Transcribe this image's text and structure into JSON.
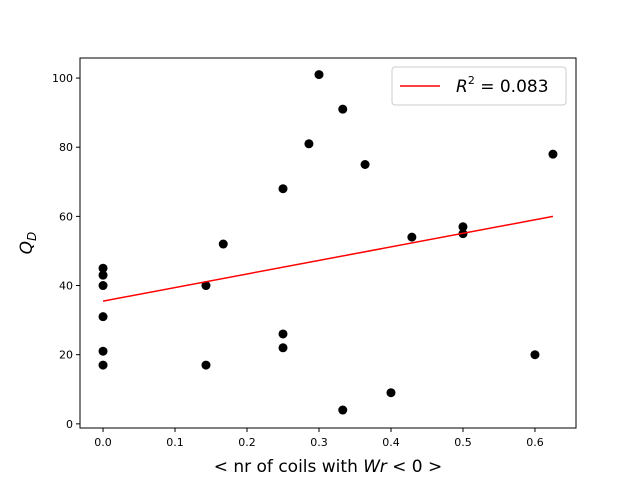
{
  "chart_data": {
    "type": "scatter",
    "title": "",
    "xlabel": "< nr of coils with Wr < 0 >",
    "xlabel_parts": {
      "pre": "< nr of coils with ",
      "var": "Wr",
      "post": " < 0 >"
    },
    "ylabel": "Q_D",
    "ylabel_parts": {
      "main": "Q",
      "sub": "D"
    },
    "xlim": [
      -0.032,
      0.657
    ],
    "ylim": [
      -1.2,
      105.8
    ],
    "xticks": [
      0.0,
      0.1,
      0.2,
      0.3,
      0.4,
      0.5,
      0.6
    ],
    "xtick_labels": [
      "0.0",
      "0.1",
      "0.2",
      "0.3",
      "0.4",
      "0.5",
      "0.6"
    ],
    "yticks": [
      0,
      20,
      40,
      60,
      80,
      100
    ],
    "ytick_labels": [
      "0",
      "20",
      "40",
      "60",
      "80",
      "100"
    ],
    "grid": false,
    "points": [
      [
        0,
        45
      ],
      [
        0,
        43
      ],
      [
        0,
        40
      ],
      [
        0,
        31
      ],
      [
        0,
        21
      ],
      [
        0,
        17
      ],
      [
        0.143,
        40
      ],
      [
        0.143,
        17
      ],
      [
        0.167,
        52
      ],
      [
        0.25,
        68
      ],
      [
        0.25,
        26
      ],
      [
        0.25,
        22
      ],
      [
        0.286,
        81
      ],
      [
        0.3,
        101
      ],
      [
        0.333,
        91
      ],
      [
        0.333,
        4
      ],
      [
        0.364,
        75
      ],
      [
        0.4,
        9
      ],
      [
        0.429,
        54
      ],
      [
        0.5,
        57
      ],
      [
        0.5,
        55
      ],
      [
        0.6,
        20
      ],
      [
        0.625,
        78
      ]
    ],
    "point_color": "#000000",
    "fit_line": {
      "x": [
        0,
        0.625
      ],
      "y": [
        35.5,
        60
      ],
      "color": "#ff0000"
    },
    "legend": {
      "placement": "top-right",
      "label": "R^2 = 0.083",
      "label_parts": {
        "var": "R",
        "sup": "2",
        "rest": " = 0.083"
      }
    }
  }
}
